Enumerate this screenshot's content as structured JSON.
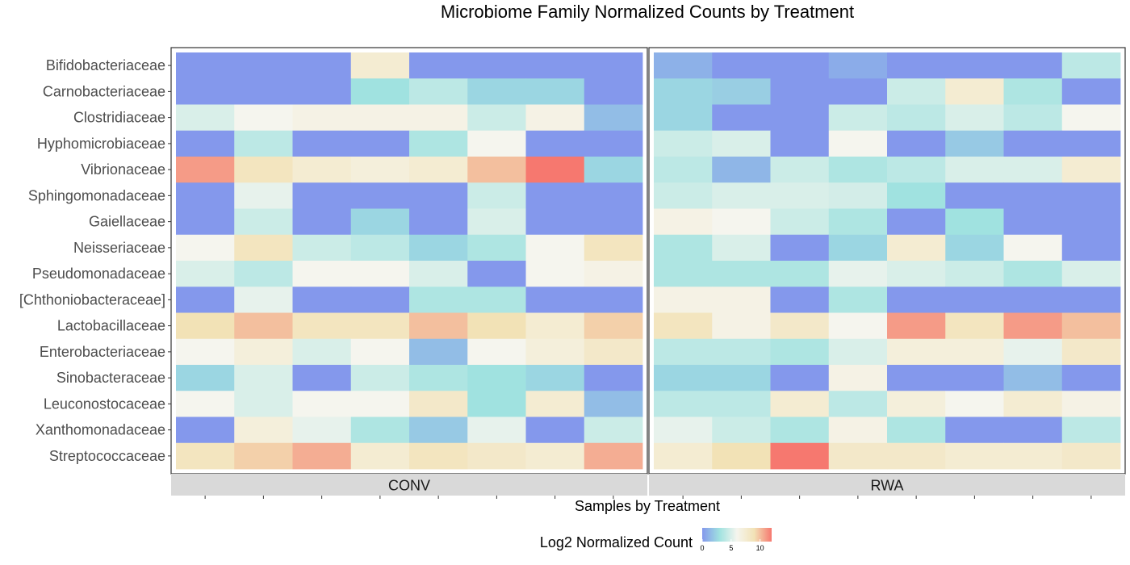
{
  "chart_data": {
    "type": "heatmap",
    "title": "Microbiome Family Normalized Counts by Treatment",
    "xlabel": "Samples by Treatment",
    "ylabel": "",
    "legend": {
      "title": "Log2 Normalized Count",
      "ticks": [
        "0",
        "5",
        "10"
      ],
      "tick_values": [
        0,
        5,
        10
      ],
      "min": 0,
      "max": 12,
      "colors": [
        "#8498ec",
        "#a0e2e0",
        "#f5f5ee",
        "#f2e2b6",
        "#f6786f"
      ],
      "placement": "bottom"
    },
    "rows": [
      "Bifidobacteriaceae",
      "Carnobacteriaceae",
      "Clostridiaceae",
      "Hyphomicrobiaceae",
      "Vibrionaceae",
      "Sphingomonadaceae",
      "Gaiellaceae",
      "Neisseriaceae",
      "Pseudomonadaceae",
      "[Chthoniobacteraceae]",
      "Lactobacillaceae",
      "Enterobacteriaceae",
      "Sinobacteraceae",
      "Leuconostocaceae",
      "Xanthomonadaceae",
      "Streptococcaceae"
    ],
    "facets": [
      {
        "name": "CONV",
        "values": [
          [
            0,
            0,
            0,
            7.5,
            0,
            0,
            0,
            0
          ],
          [
            0,
            0,
            0,
            3,
            4,
            2.5,
            2.5,
            0
          ],
          [
            5,
            6,
            6.5,
            6.5,
            6.5,
            4.5,
            6.5,
            1.5
          ],
          [
            0,
            4,
            0,
            0,
            3.5,
            6,
            0,
            0
          ],
          [
            11,
            8.5,
            7.5,
            7,
            7.5,
            10,
            12,
            2.5
          ],
          [
            0,
            5.5,
            0,
            0,
            0,
            4.5,
            0,
            0
          ],
          [
            0,
            4.5,
            0,
            2.5,
            0,
            5,
            0,
            0
          ],
          [
            6,
            8.5,
            4.5,
            4,
            2.5,
            3.5,
            6,
            8.5
          ],
          [
            5,
            4,
            6,
            6,
            5,
            0,
            6,
            6.5
          ],
          [
            0,
            5.5,
            0,
            0,
            3.5,
            3.5,
            0,
            0
          ],
          [
            9,
            10,
            8.5,
            8.5,
            10,
            9,
            7.5,
            9.5
          ],
          [
            6,
            7,
            5,
            6,
            1.5,
            6,
            7,
            8
          ],
          [
            2.5,
            5,
            0,
            4.5,
            3.5,
            3,
            2.5,
            0
          ],
          [
            6,
            5,
            6,
            6,
            8,
            3,
            7.5,
            1.5
          ],
          [
            0,
            7,
            5.5,
            3.5,
            2,
            5.5,
            0,
            4.5
          ],
          [
            8.5,
            9.5,
            10.5,
            7.5,
            8.5,
            8,
            7.5,
            10.5
          ]
        ]
      },
      {
        "name": "RWA",
        "values": [
          [
            1,
            0,
            0,
            0.8,
            0,
            0,
            0,
            4
          ],
          [
            2.5,
            2.2,
            0,
            0,
            4.5,
            7.5,
            3.5,
            0
          ],
          [
            2.5,
            0,
            0,
            4.5,
            4,
            5,
            4,
            6
          ],
          [
            4.5,
            5,
            0,
            6,
            0,
            2,
            0,
            0
          ],
          [
            4,
            1.2,
            4.5,
            3.5,
            4,
            5,
            5,
            7.5
          ],
          [
            4.5,
            5,
            5,
            4.8,
            3,
            0,
            0,
            0
          ],
          [
            6.5,
            6,
            4.5,
            3.5,
            0,
            3,
            0,
            0
          ],
          [
            3.5,
            5,
            0,
            2.5,
            7.5,
            2.5,
            6,
            0
          ],
          [
            3.5,
            3.5,
            3.5,
            5.5,
            5,
            4.5,
            3.5,
            5
          ],
          [
            6.5,
            6.5,
            0,
            3.5,
            0,
            0,
            0,
            0
          ],
          [
            8.5,
            6.5,
            8,
            6,
            11,
            8.5,
            11,
            10
          ],
          [
            4,
            4,
            3.5,
            5,
            7,
            7,
            5.5,
            8
          ],
          [
            2.5,
            2.5,
            0,
            6.5,
            0,
            0,
            1.5,
            0
          ],
          [
            4,
            4,
            7.5,
            4,
            7,
            6,
            7.5,
            6.5
          ],
          [
            5.5,
            4.5,
            3.5,
            6.5,
            3.5,
            0,
            0,
            4
          ],
          [
            7.5,
            9,
            12,
            8,
            8,
            7.5,
            7.5,
            8
          ]
        ]
      }
    ]
  }
}
